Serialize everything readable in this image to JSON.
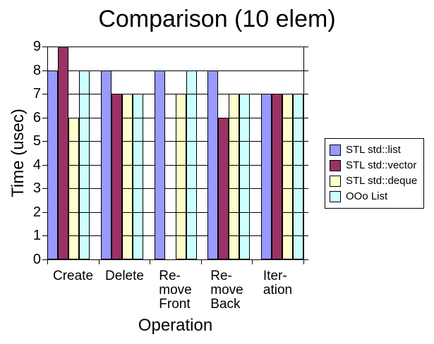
{
  "chart": {
    "title": "Comparison (10 elem)",
    "x_axis_title": "Operation",
    "y_axis_title": "Time (usec)"
  },
  "chart_data": {
    "type": "bar",
    "title": "Comparison (10 elem)",
    "xlabel": "Operation",
    "ylabel": "Time (usec)",
    "ylim": [
      0,
      9
    ],
    "y_ticks": [
      0,
      1,
      2,
      3,
      4,
      5,
      6,
      7,
      8,
      9
    ],
    "grid": "horizontal",
    "legend_position": "right",
    "categories": [
      "Create",
      "Delete",
      "Re-\nmove\nFront",
      "Re-\nmove\nBack",
      "Iter-\nation"
    ],
    "series": [
      {
        "name": "STL std::list",
        "color": "#9999FF",
        "values": [
          8,
          8,
          8,
          8,
          7
        ]
      },
      {
        "name": "STL std::vector",
        "color": "#993366",
        "values": [
          9,
          7,
          0,
          6,
          7
        ]
      },
      {
        "name": "STL std::deque",
        "color": "#FFFFCC",
        "values": [
          6,
          7,
          7,
          7,
          7
        ]
      },
      {
        "name": "OOo List",
        "color": "#CCFFFF",
        "values": [
          8,
          7,
          8,
          7,
          7
        ]
      }
    ]
  },
  "colors": {
    "axis": "#000000",
    "background": "#FFFFFF",
    "text": "#000000"
  }
}
